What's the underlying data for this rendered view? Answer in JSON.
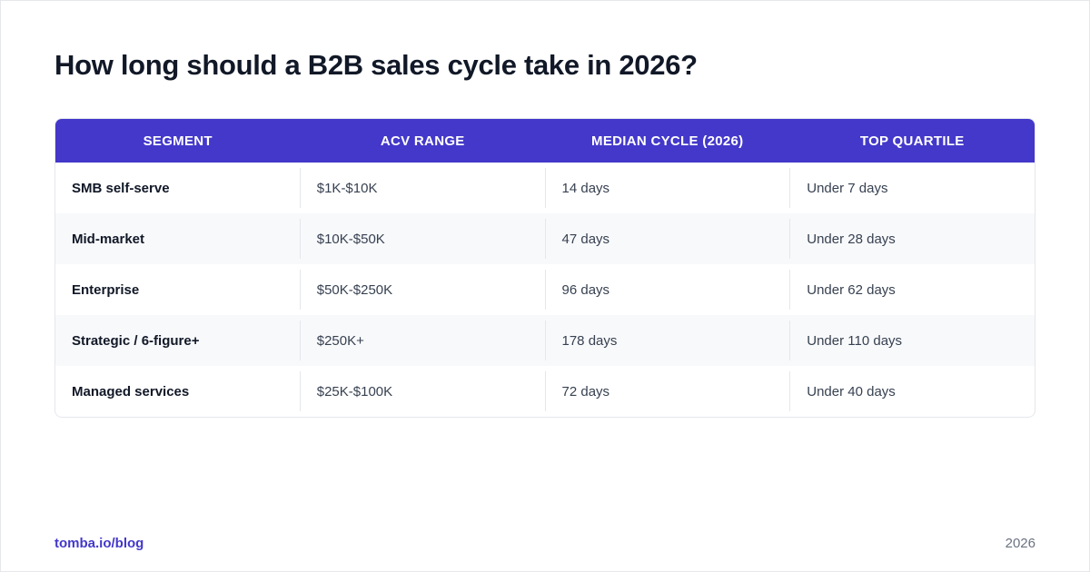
{
  "title": "How long should a B2B sales cycle take in 2026?",
  "table": {
    "headers": [
      "SEGMENT",
      "ACV RANGE",
      "MEDIAN CYCLE (2026)",
      "TOP QUARTILE"
    ],
    "rows": [
      [
        "SMB self-serve",
        "$1K-$10K",
        "14 days",
        "Under 7 days"
      ],
      [
        "Mid-market",
        "$10K-$50K",
        "47 days",
        "Under 28 days"
      ],
      [
        "Enterprise",
        "$50K-$250K",
        "96 days",
        "Under 62 days"
      ],
      [
        "Strategic / 6-figure+",
        "$250K+",
        "178 days",
        "Under 110 days"
      ],
      [
        "Managed services",
        "$25K-$100K",
        "72 days",
        "Under 40 days"
      ]
    ]
  },
  "footer": {
    "link": "tomba.io/blog",
    "year": "2026"
  },
  "colors": {
    "accent": "#4338ca",
    "title": "#111827"
  }
}
